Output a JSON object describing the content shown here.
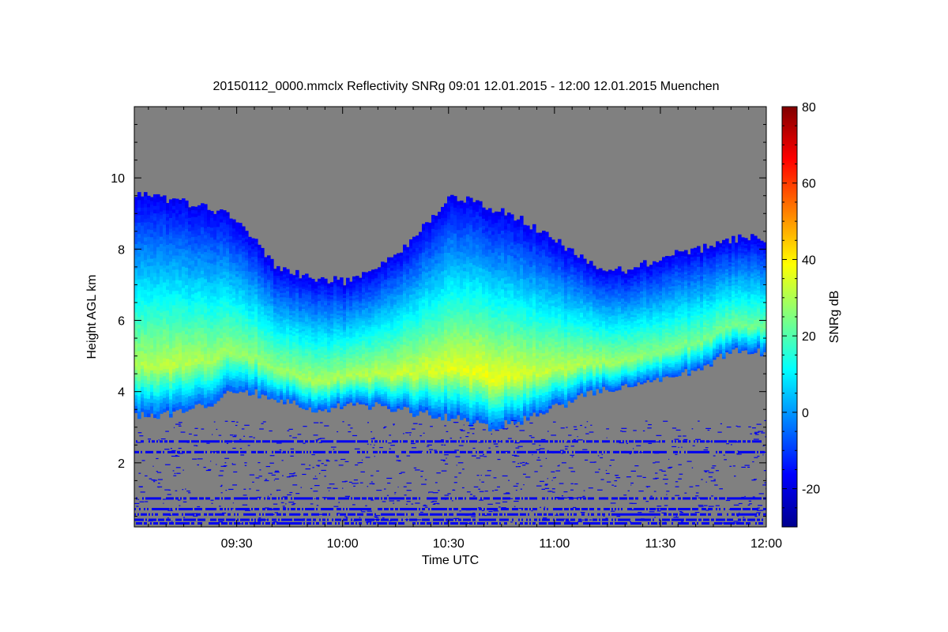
{
  "chart_data": {
    "type": "heatmap",
    "title": "20150112_0000.mmclx Reflectivity SNRg   09:01 12.01.2015 - 12:00 12.01.2015 Muenchen",
    "xlabel": "Time UTC",
    "ylabel": "Height AGL km",
    "xlim": [
      "09:01",
      "12:00"
    ],
    "ylim": [
      0.2,
      12.0
    ],
    "x_ticks": [
      "09:30",
      "10:00",
      "10:30",
      "11:00",
      "11:30",
      "12:00"
    ],
    "y_ticks": [
      "2",
      "4",
      "6",
      "8",
      "10"
    ],
    "colorbar": {
      "label": "SNRg dB",
      "range": [
        -30,
        80
      ],
      "ticks": [
        "-20",
        "0",
        "20",
        "40",
        "60",
        "80"
      ]
    },
    "background_color": "#808080",
    "colormap": [
      "#00008f",
      "#0000ff",
      "#0080ff",
      "#00ffff",
      "#80ff80",
      "#ffff00",
      "#ff8000",
      "#ff0000",
      "#800000"
    ],
    "cloud_layer": {
      "time_min": [
        0,
        10,
        20,
        30,
        40,
        50,
        60,
        70,
        80,
        90,
        100,
        110,
        120,
        130,
        140,
        150,
        160,
        170,
        179
      ],
      "top_km": [
        9.6,
        9.4,
        9.2,
        8.8,
        7.5,
        7.2,
        7.1,
        7.5,
        8.4,
        9.5,
        9.2,
        8.8,
        8.2,
        7.5,
        7.4,
        7.8,
        8.0,
        8.3,
        8.3
      ],
      "base_km": [
        3.3,
        3.4,
        3.6,
        4.1,
        3.8,
        3.5,
        3.6,
        3.6,
        3.4,
        3.3,
        3.0,
        3.2,
        3.6,
        4.0,
        4.2,
        4.4,
        4.6,
        5.2,
        5.1
      ],
      "peak_snr_db": [
        30,
        32,
        30,
        28,
        28,
        30,
        30,
        32,
        34,
        36,
        38,
        35,
        32,
        30,
        28,
        26,
        25,
        24,
        24
      ]
    },
    "noise_lines_km": [
      2.6,
      2.3,
      1.0,
      0.7,
      0.55,
      0.4,
      0.3
    ]
  }
}
